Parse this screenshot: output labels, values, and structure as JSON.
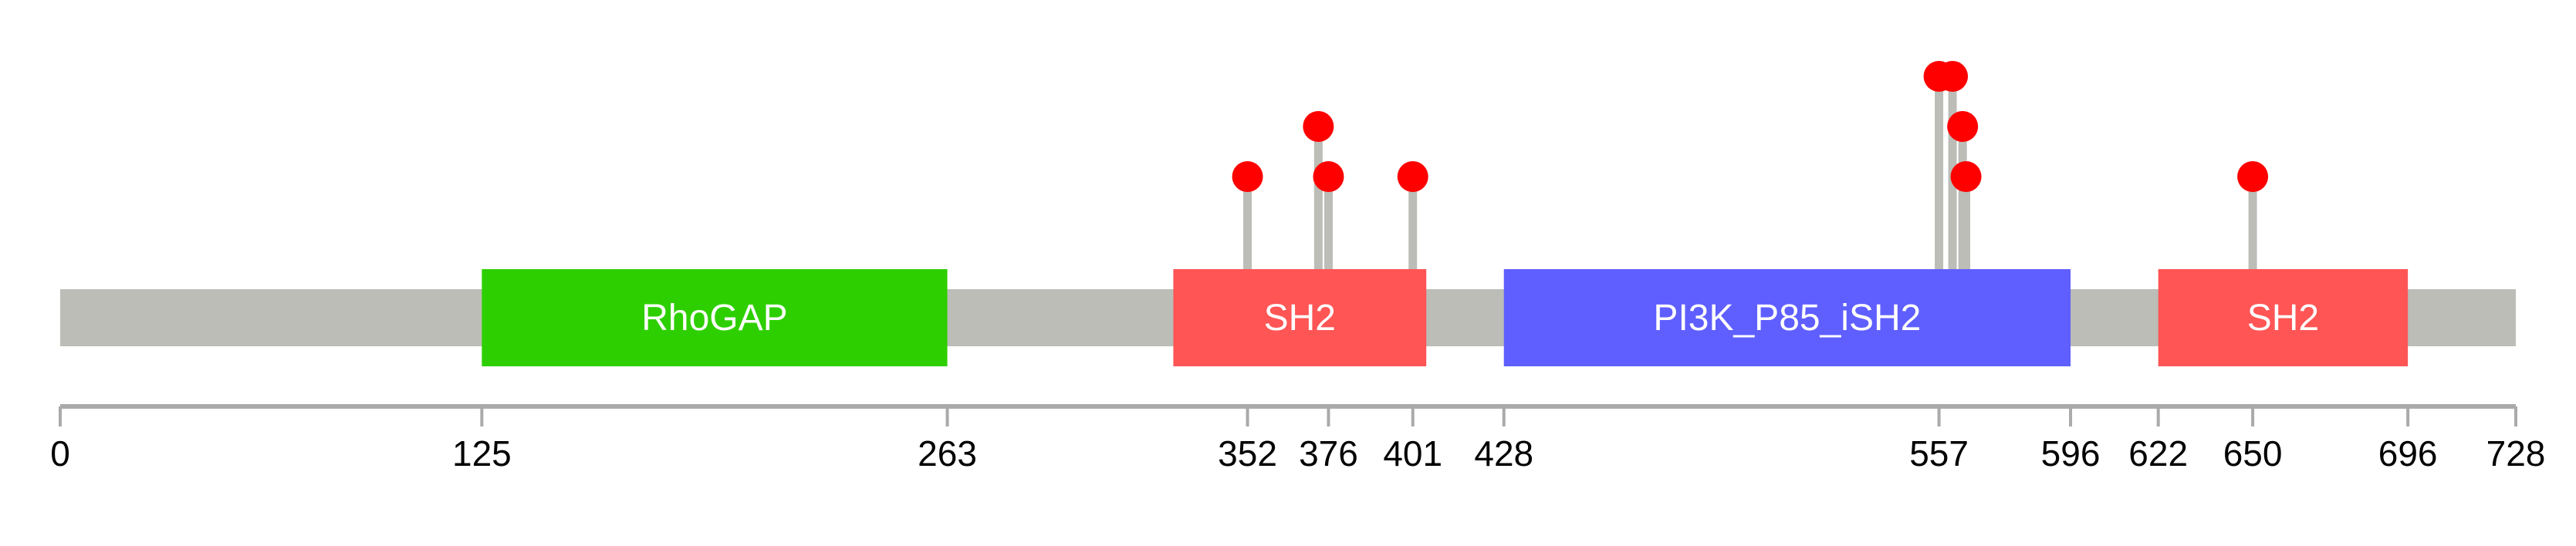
{
  "chart_data": {
    "type": "lollipop",
    "title": "",
    "xlabel": "",
    "ylabel": "",
    "xlim": [
      0,
      728
    ],
    "protein_length": 728,
    "backbone_color": "#BBBDB6",
    "mutation_color": "#FF0000",
    "domains": [
      {
        "name": "RhoGAP",
        "start": 125,
        "end": 263,
        "color": "#2ECF00"
      },
      {
        "name": "SH2",
        "start": 330,
        "end": 405,
        "color": "#FF5555"
      },
      {
        "name": "PI3K_P85_iSH2",
        "start": 428,
        "end": 596,
        "color": "#5F5FFF"
      },
      {
        "name": "SH2",
        "start": 622,
        "end": 696,
        "color": "#FF5555"
      }
    ],
    "mutations": [
      {
        "position": 352,
        "count": 1
      },
      {
        "position": 373,
        "count": 2
      },
      {
        "position": 376,
        "count": 1
      },
      {
        "position": 401,
        "count": 1
      },
      {
        "position": 557,
        "count": 3
      },
      {
        "position": 561,
        "count": 3
      },
      {
        "position": 564,
        "count": 2
      },
      {
        "position": 565,
        "count": 1
      },
      {
        "position": 650,
        "count": 1
      }
    ],
    "tick_labels": [
      "0",
      "125",
      "263",
      "352",
      "376",
      "401",
      "428",
      "557",
      "596",
      "622",
      "650",
      "696",
      "728"
    ]
  }
}
